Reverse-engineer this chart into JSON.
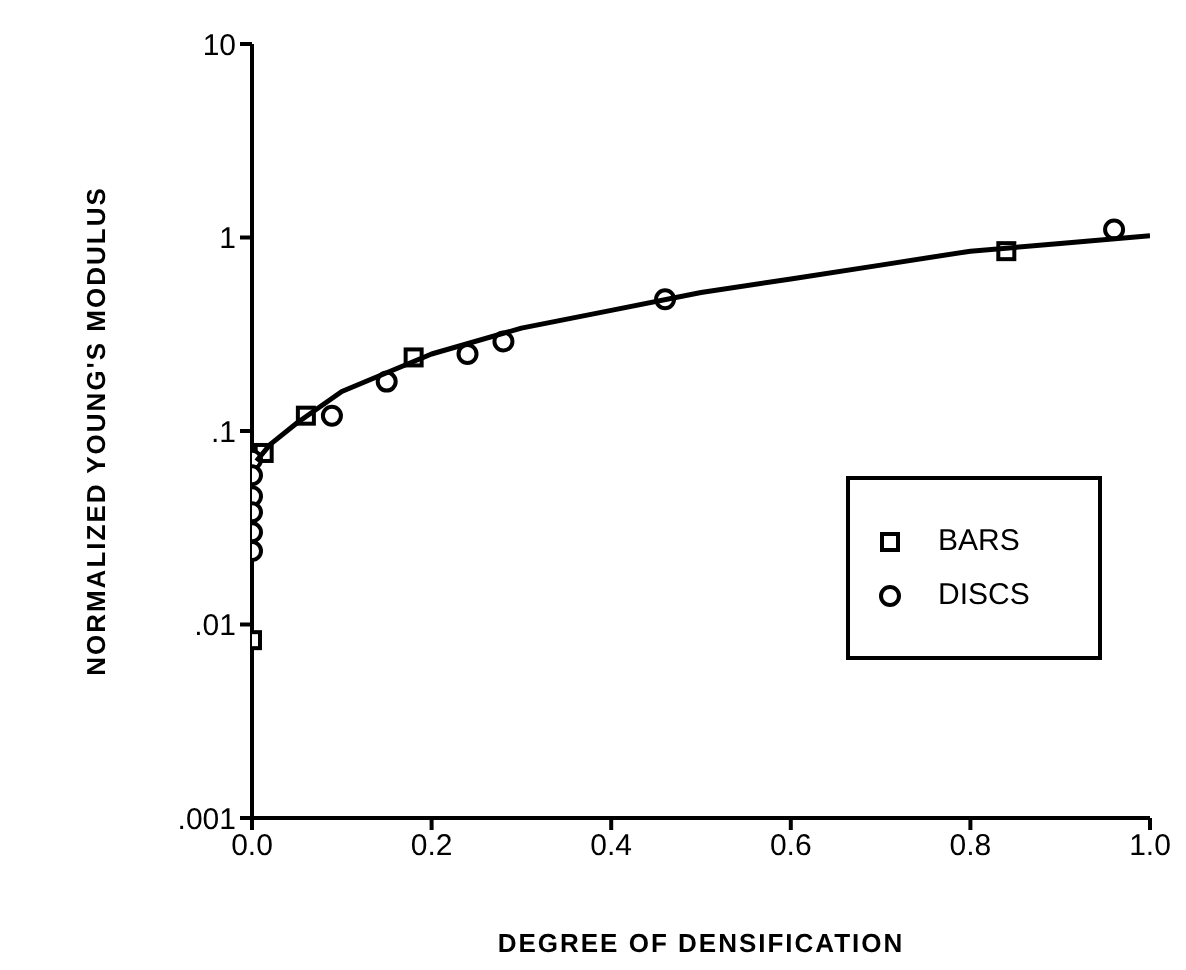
{
  "chart_data": {
    "type": "scatter",
    "xlabel": "DEGREE OF DENSIFICATION",
    "ylabel": "NORMALIZED YOUNG'S MODULUS",
    "log": "y",
    "xlim": [
      0,
      1
    ],
    "ylim": [
      0.001,
      10
    ],
    "xticks": [
      {
        "value": 0,
        "label": "0.0"
      },
      {
        "value": 0.2,
        "label": "0.2"
      },
      {
        "value": 0.4,
        "label": "0.4"
      },
      {
        "value": 0.6,
        "label": "0.6"
      },
      {
        "value": 0.8,
        "label": "0.8"
      },
      {
        "value": 1,
        "label": "1.0"
      }
    ],
    "yticks": [
      {
        "value": 0.001,
        "label": ".001"
      },
      {
        "value": 0.01,
        "label": ".01"
      },
      {
        "value": 0.1,
        "label": ".1"
      },
      {
        "value": 1,
        "label": "1"
      },
      {
        "value": 10,
        "label": "10"
      }
    ],
    "grid": false,
    "legend": "right",
    "series": [
      {
        "name": "BARS",
        "marker": "square",
        "color": "#000000",
        "x": [
          0,
          0.013,
          0.06,
          0.18,
          0.84
        ],
        "values": [
          0.0083,
          0.077,
          0.12,
          0.24,
          0.85
        ]
      },
      {
        "name": "DISCS",
        "marker": "circle",
        "color": "#000000",
        "x": [
          0,
          0,
          0,
          0,
          0,
          0,
          0.089,
          0.15,
          0.24,
          0.28,
          0.46,
          0.96
        ],
        "values": [
          0.071,
          0.059,
          0.046,
          0.038,
          0.03,
          0.024,
          0.12,
          0.18,
          0.25,
          0.29,
          0.48,
          1.1
        ]
      },
      {
        "type": "line",
        "color": "#000000",
        "line_style": "solid",
        "marker": "none",
        "x": [
          0.005,
          0.02,
          0.05,
          0.1,
          0.15,
          0.2,
          0.3,
          0.4,
          0.5,
          0.6,
          0.7,
          0.8,
          0.9,
          1.0
        ],
        "values": [
          0.07,
          0.085,
          0.11,
          0.16,
          0.2,
          0.25,
          0.34,
          0.42,
          0.52,
          0.61,
          0.72,
          0.85,
          0.93,
          1.02
        ]
      }
    ]
  }
}
